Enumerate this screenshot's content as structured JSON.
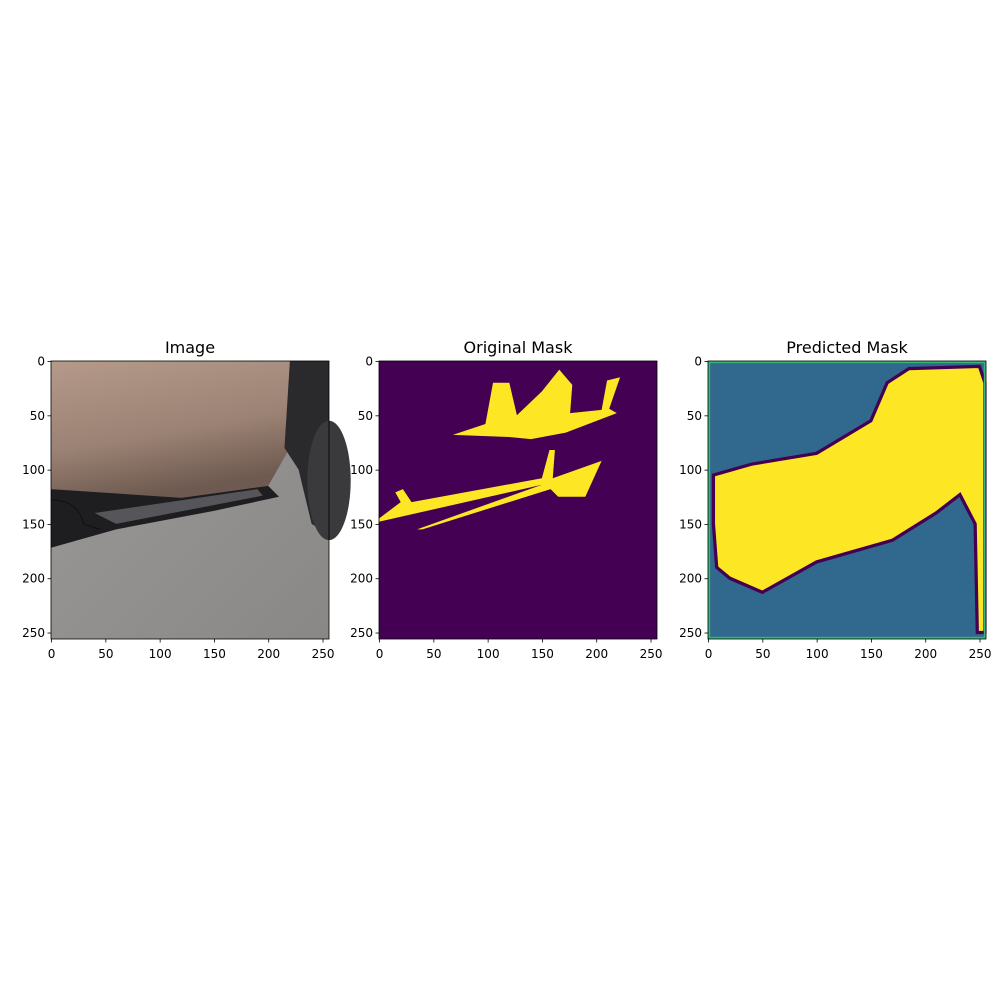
{
  "chart_data": [
    {
      "type": "image",
      "title": "Image",
      "xlim": [
        -0.5,
        255.5
      ],
      "ylim": [
        255.5,
        -0.5
      ],
      "xticks": [
        0,
        50,
        100,
        150,
        200,
        250
      ],
      "yticks": [
        0,
        50,
        100,
        150,
        200,
        250
      ]
    },
    {
      "type": "image",
      "title": "Original Mask",
      "xlim": [
        -0.5,
        255.5
      ],
      "ylim": [
        255.5,
        -0.5
      ],
      "xticks": [
        0,
        50,
        100,
        150,
        200,
        250
      ],
      "yticks": [
        0,
        50,
        100,
        150,
        200,
        250
      ]
    },
    {
      "type": "image",
      "title": "Predicted Mask",
      "xlim": [
        -0.5,
        255.5
      ],
      "ylim": [
        255.5,
        -0.5
      ],
      "xticks": [
        0,
        50,
        100,
        150,
        200,
        250
      ],
      "yticks": [
        0,
        50,
        100,
        150,
        200,
        250
      ]
    }
  ]
}
